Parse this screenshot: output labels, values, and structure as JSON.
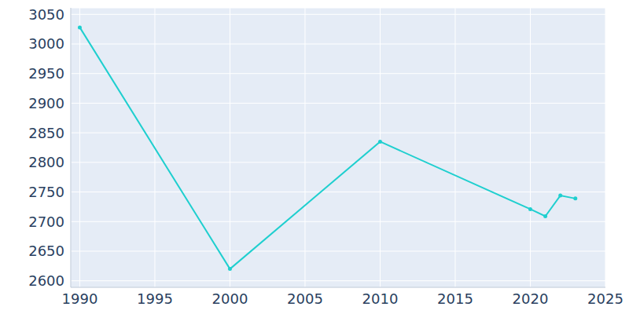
{
  "chart_data": {
    "type": "line",
    "x": [
      1990,
      2000,
      2010,
      2020,
      2021,
      2022,
      2023
    ],
    "values": [
      3028,
      2620,
      2835,
      2721,
      2709,
      2744,
      2739
    ],
    "color": "#1fcfcf",
    "marker": "circle",
    "xlim": [
      1989.4,
      2025
    ],
    "xticks": [
      1990,
      1995,
      2000,
      2005,
      2010,
      2015,
      2020,
      2025
    ],
    "ylim": [
      2589,
      3061
    ],
    "yticks": [
      2600,
      2650,
      2700,
      2750,
      2800,
      2850,
      2900,
      2950,
      3000,
      3050
    ],
    "grid": true
  }
}
